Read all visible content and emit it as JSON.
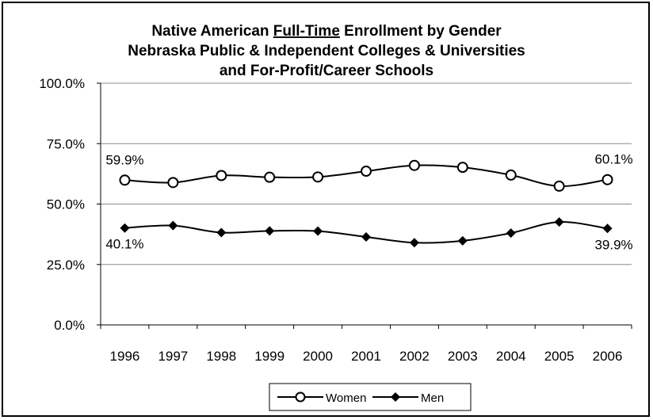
{
  "chart_data": {
    "type": "line",
    "title": {
      "line1_prefix": "Native American ",
      "line1_underlined": "Full-Time",
      "line1_suffix": " Enrollment by Gender",
      "line2": "Nebraska Public & Independent Colleges & Universities",
      "line3": "and For-Profit/Career Schools"
    },
    "xlabel": "",
    "ylabel": "",
    "categories": [
      "1996",
      "1997",
      "1998",
      "1999",
      "2000",
      "2001",
      "2002",
      "2003",
      "2004",
      "2005",
      "2006"
    ],
    "ylim": [
      0,
      100
    ],
    "yticks": [
      "0.0%",
      "25.0%",
      "50.0%",
      "75.0%",
      "100.0%"
    ],
    "grid": true,
    "legend_position": "bottom",
    "series": [
      {
        "name": "Women",
        "marker": "open-circle",
        "color": "#000000",
        "values": [
          59.9,
          58.9,
          61.8,
          61.1,
          61.2,
          63.6,
          66.0,
          65.2,
          62.0,
          57.4,
          60.1
        ]
      },
      {
        "name": "Men",
        "marker": "filled-diamond",
        "color": "#000000",
        "values": [
          40.1,
          41.1,
          38.2,
          38.9,
          38.8,
          36.4,
          34.0,
          34.8,
          38.0,
          42.6,
          39.9
        ]
      }
    ],
    "annotations": [
      {
        "series": 0,
        "index": 0,
        "text": "59.9%"
      },
      {
        "series": 0,
        "index": 10,
        "text": "60.1%"
      },
      {
        "series": 1,
        "index": 0,
        "text": "40.1%"
      },
      {
        "series": 1,
        "index": 10,
        "text": "39.9%"
      }
    ]
  }
}
